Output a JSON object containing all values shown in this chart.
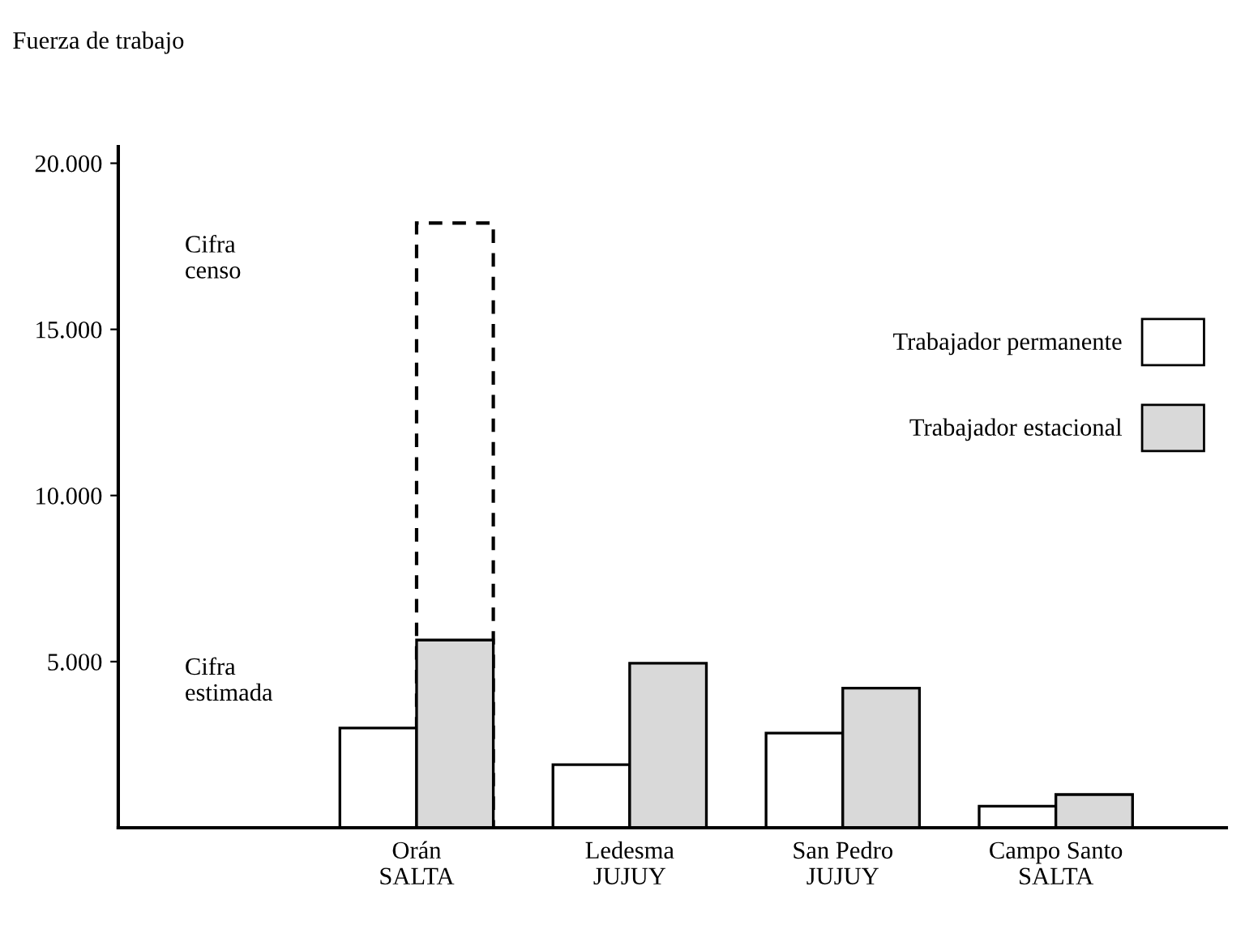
{
  "chart_data": {
    "type": "bar",
    "ylabel": "Fuerza de trabajo",
    "categories": [
      "Orán\nSALTA",
      "Ledesma\nJUJUY",
      "San Pedro\nJUJUY",
      "Campo Santo\nSALTA"
    ],
    "series": [
      {
        "name": "Trabajador permanente",
        "color": "#ffffff",
        "values": [
          3000,
          1900,
          2850,
          650
        ]
      },
      {
        "name": "Trabajador estacional",
        "color": "#d9d9d9",
        "values": [
          5650,
          4950,
          4200,
          1000
        ]
      },
      {
        "color": "#ffffff",
        "line_style": "dashed",
        "values": [
          18200,
          null,
          null,
          null
        ]
      }
    ],
    "ylim": [
      0,
      20500
    ],
    "yticks": [
      {
        "value": 5000,
        "label": "5.000"
      },
      {
        "value": 10000,
        "label": "10.000"
      },
      {
        "value": 15000,
        "label": "15.000"
      },
      {
        "value": 20000,
        "label": "20.000"
      }
    ],
    "annotations": [
      "Cifra\ncenso",
      "Cifra\nestimada"
    ],
    "legend": "right",
    "grid": false
  }
}
